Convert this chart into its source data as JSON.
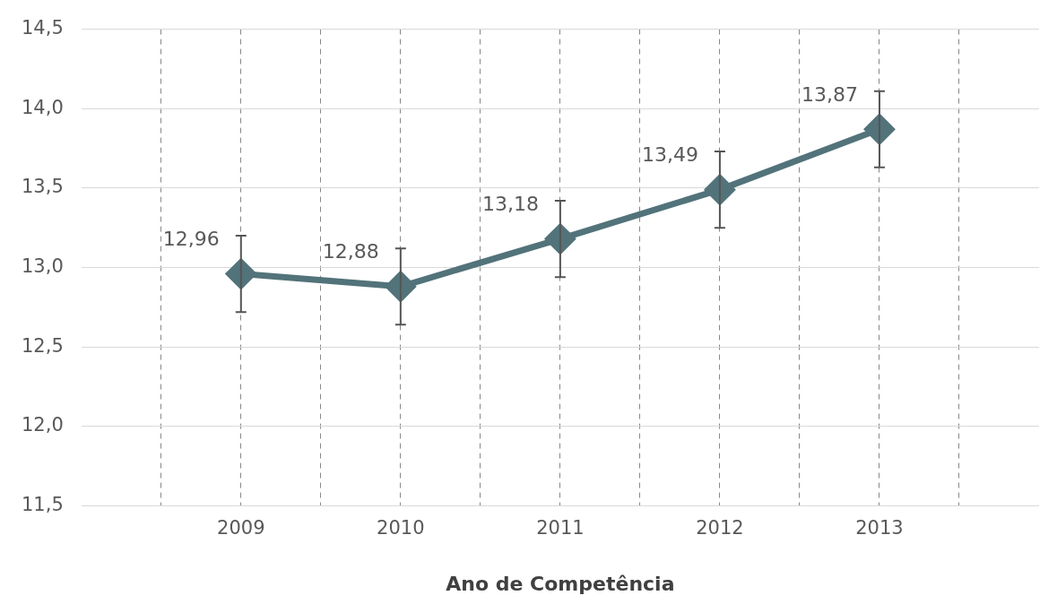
{
  "chart_data": {
    "type": "line",
    "xlabel": "Ano de Competência",
    "x": [
      2009,
      2010,
      2011,
      2012,
      2013
    ],
    "series": [
      {
        "color": "#52737a",
        "values": [
          12.96,
          12.88,
          13.18,
          13.49,
          13.87
        ],
        "errors": [
          0.24,
          0.24,
          0.24,
          0.24,
          0.24
        ],
        "value_labels": [
          "12,96",
          "12,88",
          "13,18",
          "13,49",
          "13,87"
        ]
      }
    ],
    "xlim": [
      2008,
      2014
    ],
    "xticks": [
      {
        "value": 2008.5,
        "label": null
      },
      2009,
      {
        "value": 2009.5,
        "label": null
      },
      2010,
      {
        "value": 2010.5,
        "label": null
      },
      2011,
      {
        "value": 2011.5,
        "label": null
      },
      2012,
      {
        "value": 2012.5,
        "label": null
      },
      2013,
      {
        "value": 2013.5,
        "label": null
      }
    ],
    "ylim": [
      11.5,
      14.5
    ],
    "yticks": [
      {
        "value": 11.5,
        "label": "11,5"
      },
      {
        "value": 12,
        "label": "12,0"
      },
      {
        "value": 12.5,
        "label": "12,5"
      },
      {
        "value": 13,
        "label": "13,0"
      },
      {
        "value": 13.5,
        "label": "13,5"
      },
      {
        "value": 14,
        "label": "14,0"
      },
      {
        "value": 14.5,
        "label": "14,5"
      }
    ],
    "grid": true,
    "legend": false,
    "marker": "diamond",
    "line_style": "solid"
  }
}
